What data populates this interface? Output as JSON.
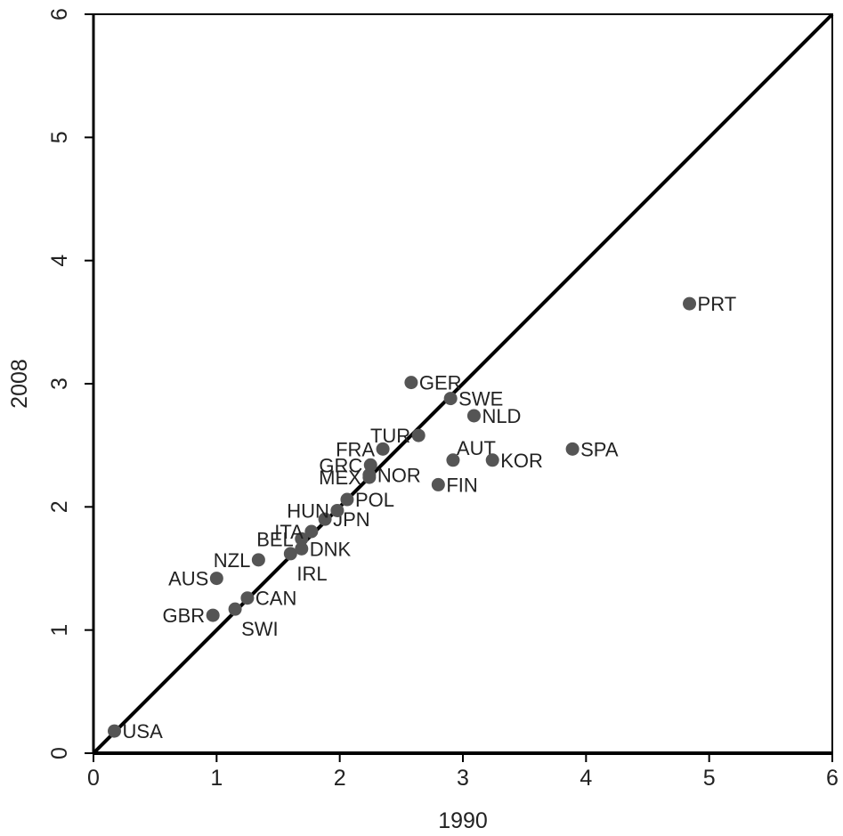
{
  "chart_data": {
    "type": "scatter",
    "title": "",
    "xlabel": "1990",
    "ylabel": "2008",
    "xlim": [
      0,
      6
    ],
    "ylim": [
      0,
      6
    ],
    "xticks": [
      "0",
      "1",
      "2",
      "3",
      "4",
      "5",
      "6"
    ],
    "yticks": [
      "0",
      "1",
      "2",
      "3",
      "4",
      "5",
      "6"
    ],
    "grid": false,
    "reference_line": {
      "type": "diagonal",
      "from": [
        0,
        0
      ],
      "to": [
        6,
        6
      ]
    },
    "colors": {
      "points": "#555555",
      "line": "#000000",
      "axes": "#000000"
    },
    "points": [
      {
        "label": "USA",
        "x": 0.17,
        "y": 0.18,
        "anchor": "right"
      },
      {
        "label": "GBR",
        "x": 0.97,
        "y": 1.12,
        "anchor": "left"
      },
      {
        "label": "SWI",
        "x": 1.15,
        "y": 1.17,
        "anchor": "below-right"
      },
      {
        "label": "CAN",
        "x": 1.25,
        "y": 1.26,
        "anchor": "right"
      },
      {
        "label": "AUS",
        "x": 1.0,
        "y": 1.42,
        "anchor": "left"
      },
      {
        "label": "NZL",
        "x": 1.34,
        "y": 1.57,
        "anchor": "left"
      },
      {
        "label": "IRL",
        "x": 1.6,
        "y": 1.62,
        "anchor": "below-right"
      },
      {
        "label": "DNK",
        "x": 1.69,
        "y": 1.66,
        "anchor": "right"
      },
      {
        "label": "BEL",
        "x": 1.69,
        "y": 1.74,
        "anchor": "left"
      },
      {
        "label": "ITA",
        "x": 1.77,
        "y": 1.8,
        "anchor": "left"
      },
      {
        "label": "JPN",
        "x": 1.88,
        "y": 1.9,
        "anchor": "right"
      },
      {
        "label": "HUN",
        "x": 1.98,
        "y": 1.97,
        "anchor": "left"
      },
      {
        "label": "POL",
        "x": 2.06,
        "y": 2.06,
        "anchor": "right"
      },
      {
        "label": "MEX",
        "x": 2.24,
        "y": 2.24,
        "anchor": "left"
      },
      {
        "label": "NOR",
        "x": 2.24,
        "y": 2.26,
        "anchor": "right"
      },
      {
        "label": "GRC",
        "x": 2.25,
        "y": 2.34,
        "anchor": "left"
      },
      {
        "label": "FRA",
        "x": 2.35,
        "y": 2.47,
        "anchor": "left"
      },
      {
        "label": "TUR",
        "x": 2.64,
        "y": 2.58,
        "anchor": "left"
      },
      {
        "label": "FIN",
        "x": 2.8,
        "y": 2.18,
        "anchor": "right"
      },
      {
        "label": "AUT",
        "x": 2.92,
        "y": 2.38,
        "anchor": "above-right"
      },
      {
        "label": "GER",
        "x": 2.58,
        "y": 3.01,
        "anchor": "right"
      },
      {
        "label": "SWE",
        "x": 2.9,
        "y": 2.88,
        "anchor": "right"
      },
      {
        "label": "NLD",
        "x": 3.09,
        "y": 2.74,
        "anchor": "right"
      },
      {
        "label": "KOR",
        "x": 3.24,
        "y": 2.38,
        "anchor": "right"
      },
      {
        "label": "SPA",
        "x": 3.89,
        "y": 2.47,
        "anchor": "right"
      },
      {
        "label": "PRT",
        "x": 4.84,
        "y": 3.65,
        "anchor": "right"
      }
    ]
  }
}
